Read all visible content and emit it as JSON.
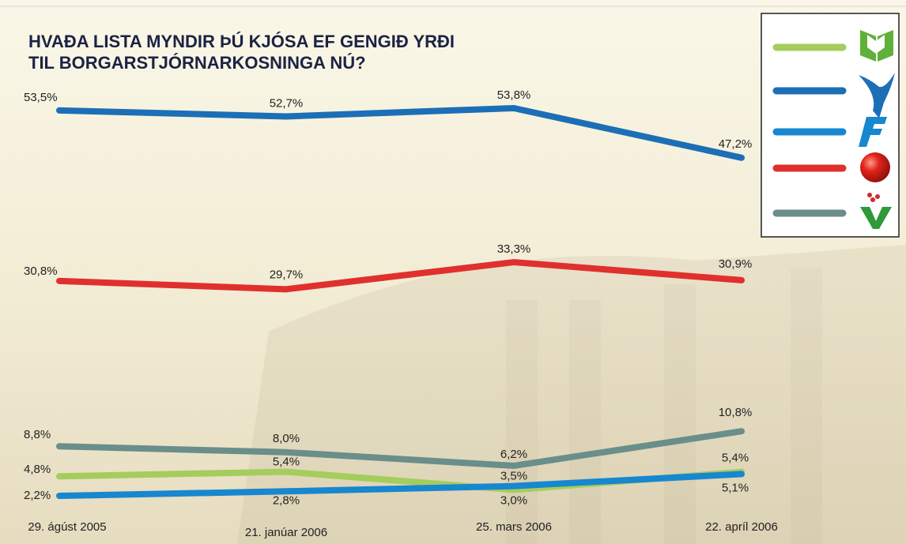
{
  "chart_data": {
    "type": "line",
    "title": [
      "HVAÐA LISTA MYNDIR ÞÚ KJÓSA EF GENGIÐ YRÐI",
      "TIL BORGARSTJÓRNARKOSNINGA NÚ?"
    ],
    "categories": [
      "29. ágúst 2005",
      "21. janúar 2006",
      "25. mars 2006",
      "22. apríl 2006"
    ],
    "series": [
      {
        "color": "#a4cd5c",
        "values": [
          4.8,
          5.4,
          3.0,
          5.4
        ],
        "value_labels": [
          "4,8%",
          "5,4%",
          "3,0%",
          "5,4%"
        ]
      },
      {
        "color": "#1c6fb6",
        "values": [
          53.5,
          52.7,
          53.8,
          47.2
        ],
        "value_labels": [
          "53,5%",
          "52,7%",
          "53,8%",
          "47,2%"
        ]
      },
      {
        "color": "#1787cf",
        "values": [
          2.2,
          2.8,
          3.5,
          5.1
        ],
        "value_labels": [
          "2,2%",
          "2,8%",
          "3,5%",
          "5,1%"
        ]
      },
      {
        "color": "#e0302d",
        "values": [
          30.8,
          29.7,
          33.3,
          30.9
        ],
        "value_labels": [
          "30,8%",
          "29,7%",
          "33,3%",
          "30,9%"
        ]
      },
      {
        "color": "#6a8e8a",
        "values": [
          8.8,
          8.0,
          6.2,
          10.8
        ],
        "value_labels": [
          "8,8%",
          "8,0%",
          "6,2%",
          "10,8%"
        ]
      }
    ]
  }
}
